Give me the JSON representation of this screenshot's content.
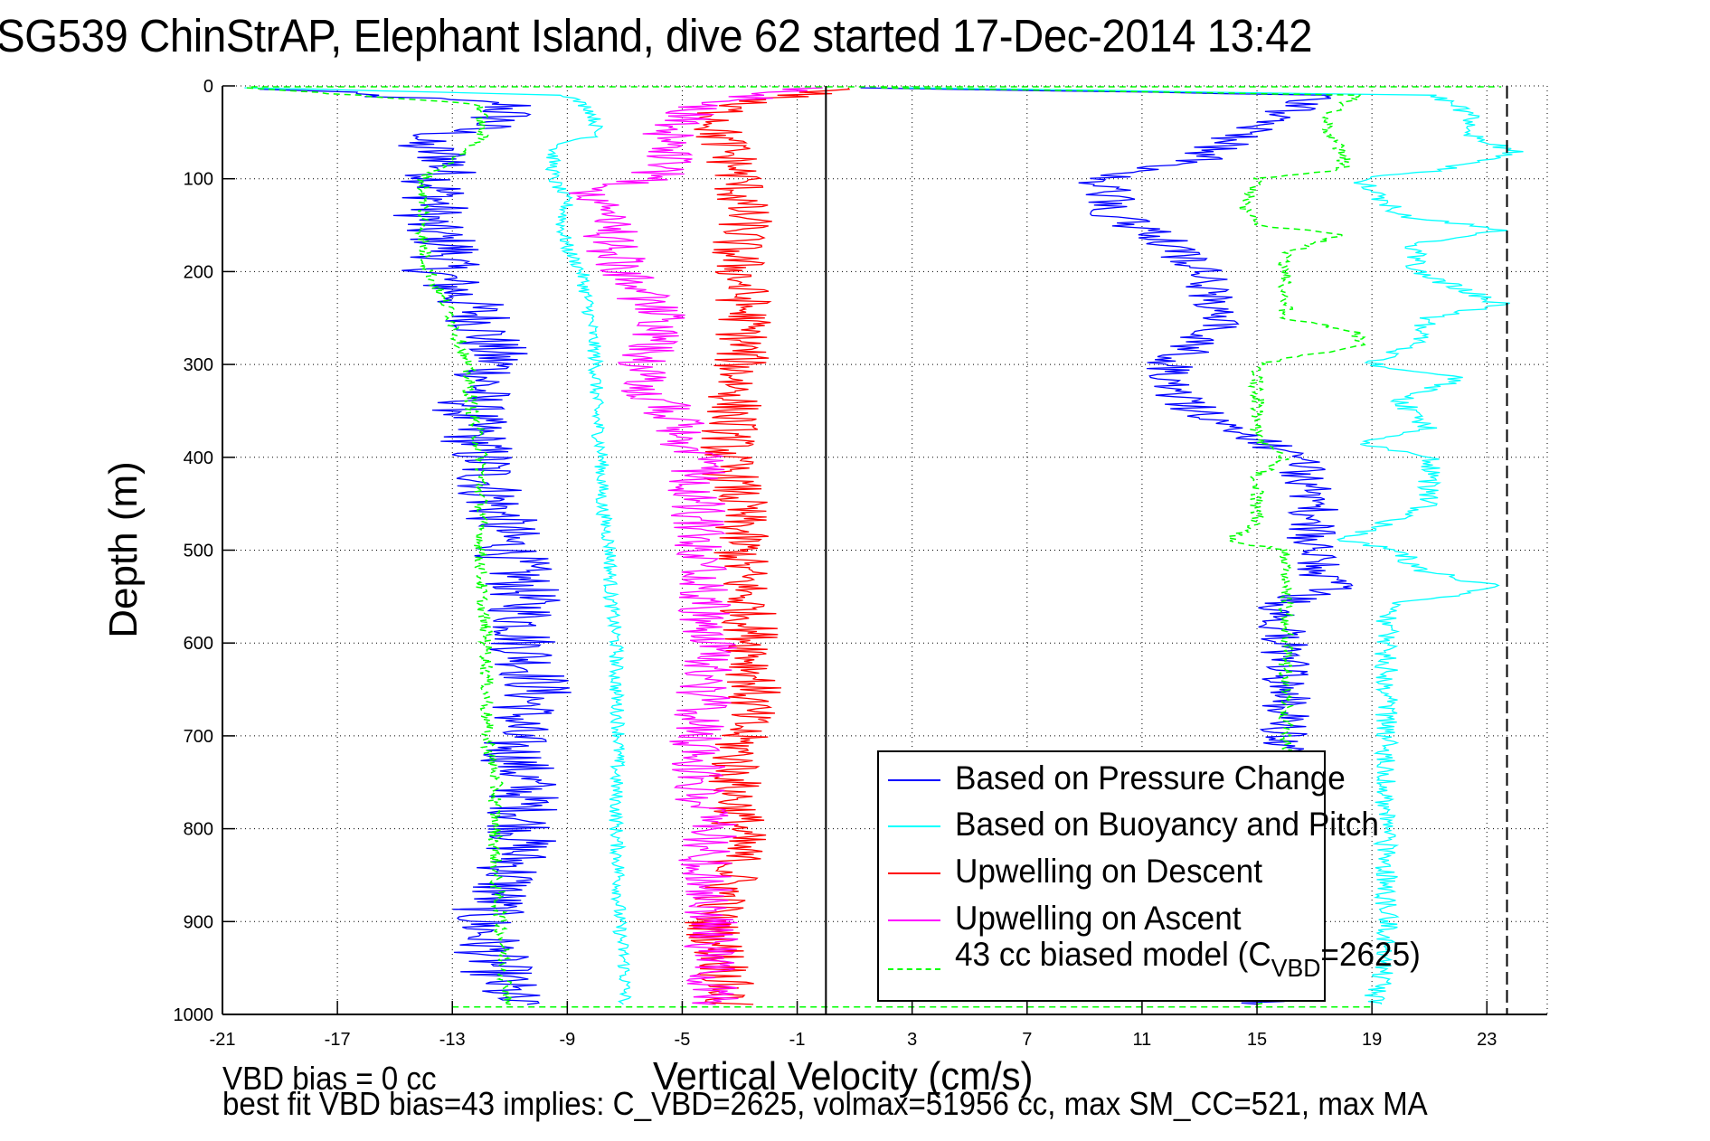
{
  "figure": {
    "title": "SG539 ChinStrAP, Elephant Island, dive 62 started 17-Dec-2014 13:42",
    "footer_line1": "VBD bias = 0 cc",
    "footer_line2": "best fit VBD bias=43 implies: C_VBD=2625, volmax=51956 cc, max SM_CC=521, max MA"
  },
  "chart_data": {
    "type": "line",
    "title": "SG539 ChinStrAP, Elephant Island, dive 62 started 17-Dec-2014 13:42",
    "xlabel": "Vertical Velocity (cm/s)",
    "ylabel": "Depth (m)",
    "xlim": [
      -21,
      25.1
    ],
    "ylim": [
      0,
      1000
    ],
    "y_reversed": true,
    "grid": true,
    "xticks": [
      -21,
      -17,
      -13,
      -9,
      -5,
      -1,
      3,
      7,
      11,
      15,
      19,
      23
    ],
    "yticks": [
      0,
      100,
      200,
      300,
      400,
      500,
      600,
      700,
      800,
      900,
      1000
    ],
    "xtick_labels": [
      "-21",
      "-17",
      "-13",
      "-9",
      "-5",
      "-1",
      "3",
      "7",
      "11",
      "15",
      "19",
      "23"
    ],
    "ytick_labels": [
      "0",
      "100",
      "200",
      "300",
      "400",
      "500",
      "600",
      "700",
      "800",
      "900",
      "1000"
    ],
    "reference_lines": [
      {
        "name": "zero-velocity",
        "x": 0,
        "style": "solid",
        "color": "#000000"
      },
      {
        "name": "max-velocity",
        "x": 23.7,
        "style": "dashed",
        "color": "#000000"
      }
    ],
    "legend": {
      "placement": "bottom-right",
      "entries": [
        {
          "label": "Based on Pressure Change",
          "color": "#0000ff",
          "style": "solid"
        },
        {
          "label": "Based on Buoyancy and Pitch",
          "color": "#00ffff",
          "style": "solid"
        },
        {
          "label": "Upwelling on Descent",
          "color": "#ff0000",
          "style": "solid"
        },
        {
          "label": "Upwelling on Ascent",
          "color": "#ff00ff",
          "style": "solid"
        },
        {
          "label_main": "43 cc biased model (C",
          "label_sub": "VBD",
          "label_tail": "=2625)",
          "color": "#00ff00",
          "style": "dashed"
        }
      ]
    },
    "series": [
      {
        "name": "Based on Pressure Change (descent)",
        "color": "#0000ff",
        "style": "solid",
        "noise_cm_s": 1.3,
        "depth": [
          2,
          20,
          40,
          60,
          80,
          100,
          125,
          150,
          175,
          200,
          250,
          300,
          350,
          400,
          450,
          500,
          550,
          600,
          650,
          700,
          750,
          800,
          850,
          900,
          950,
          990
        ],
        "velocity": [
          -20,
          -11,
          -11.5,
          -14.5,
          -13,
          -13.5,
          -13.5,
          -14,
          -13,
          -13.5,
          -12,
          -11.5,
          -12.5,
          -12,
          -11.5,
          -11,
          -10.5,
          -10.5,
          -10,
          -11,
          -10.5,
          -10.5,
          -11,
          -12,
          -11.5,
          -11
        ]
      },
      {
        "name": "Based on Pressure Change (ascent)",
        "color": "#0000ff",
        "style": "solid",
        "noise_cm_s": 0.9,
        "depth": [
          990,
          950,
          900,
          850,
          800,
          750,
          700,
          650,
          600,
          560,
          540,
          500,
          450,
          400,
          370,
          330,
          300,
          260,
          230,
          200,
          160,
          140,
          120,
          100,
          80,
          50,
          30,
          10,
          2
        ],
        "velocity": [
          15,
          16,
          16,
          16,
          16,
          16,
          16,
          16,
          16,
          15.8,
          17.5,
          16.8,
          17,
          16.5,
          14,
          12,
          12,
          13.5,
          13.5,
          13,
          11.5,
          10,
          10,
          9.5,
          13,
          14.5,
          16,
          17,
          2
        ]
      },
      {
        "name": "Based on Buoyancy and Pitch (descent)",
        "color": "#00ffff",
        "style": "solid",
        "noise_cm_s": 0.25,
        "depth": [
          2,
          10,
          25,
          40,
          55,
          60,
          70,
          80,
          100,
          125,
          150,
          175,
          200,
          250,
          300,
          350,
          400,
          450,
          500,
          550,
          600,
          650,
          700,
          750,
          800,
          850,
          900,
          950,
          990
        ],
        "velocity": [
          -20,
          -9,
          -8.2,
          -8,
          -8,
          -9,
          -9.5,
          -9.5,
          -9.5,
          -9,
          -9.2,
          -9,
          -8.5,
          -8.2,
          -8,
          -8,
          -7.8,
          -7.8,
          -7.5,
          -7.5,
          -7.3,
          -7.3,
          -7.2,
          -7.3,
          -7.3,
          -7.2,
          -7.2,
          -7,
          -7
        ]
      },
      {
        "name": "Based on Buoyancy and Pitch (ascent)",
        "color": "#00ffff",
        "style": "solid",
        "noise_cm_s": 0.4,
        "depth": [
          990,
          950,
          900,
          850,
          800,
          750,
          700,
          650,
          600,
          560,
          540,
          520,
          500,
          490,
          450,
          400,
          385,
          370,
          340,
          315,
          300,
          275,
          250,
          235,
          200,
          170,
          155,
          140,
          100,
          90,
          70,
          50,
          30,
          10,
          2
        ],
        "velocity": [
          19,
          19.5,
          19.5,
          19.5,
          19.5,
          19.5,
          19.5,
          19.5,
          19.5,
          19.5,
          23.5,
          20.5,
          20,
          18,
          21,
          21,
          18.5,
          21,
          20,
          22,
          19,
          20.5,
          21,
          23.5,
          20.5,
          20.5,
          23.5,
          20,
          18.5,
          21.5,
          24,
          22,
          22.5,
          21,
          3
        ]
      },
      {
        "name": "Upwelling on Descent",
        "color": "#ff0000",
        "style": "solid",
        "noise_cm_s": 1.0,
        "depth": [
          2,
          20,
          50,
          75,
          100,
          125,
          150,
          175,
          200,
          250,
          300,
          350,
          400,
          450,
          500,
          550,
          600,
          650,
          700,
          750,
          800,
          850,
          900,
          950,
          990
        ],
        "velocity": [
          1,
          -3.5,
          -3.8,
          -3.3,
          -3,
          -3,
          -2.8,
          -3.2,
          -3,
          -2.8,
          -3,
          -3.2,
          -3.5,
          -3,
          -3,
          -2.8,
          -2.5,
          -2.5,
          -3,
          -3.2,
          -3,
          -3.2,
          -4,
          -3.5,
          -3.5
        ]
      },
      {
        "name": "Upwelling on Ascent",
        "color": "#ff00ff",
        "style": "solid",
        "noise_cm_s": 1.0,
        "depth": [
          990,
          950,
          900,
          850,
          800,
          750,
          700,
          650,
          600,
          550,
          500,
          450,
          400,
          375,
          350,
          320,
          300,
          275,
          250,
          225,
          200,
          175,
          150,
          130,
          110,
          100,
          75,
          50,
          25,
          2
        ],
        "velocity": [
          -4,
          -4,
          -4,
          -4.2,
          -4,
          -4.5,
          -4.5,
          -4.2,
          -4,
          -4.3,
          -4.5,
          -4.5,
          -4.5,
          -5,
          -5.5,
          -6.5,
          -6.5,
          -6,
          -5.5,
          -6.5,
          -7,
          -7.5,
          -7.5,
          -8,
          -8,
          -6,
          -5.5,
          -5.5,
          -4.5,
          -1
        ]
      },
      {
        "name": "43 cc biased model (descent)",
        "color": "#00ff00",
        "style": "dashed",
        "noise_cm_s": 0.25,
        "depth": [
          2,
          20,
          40,
          60,
          80,
          100,
          125,
          150,
          175,
          200,
          250,
          300,
          350,
          400,
          450,
          500,
          550,
          600,
          650,
          700,
          750,
          800,
          850,
          900,
          950,
          990
        ],
        "velocity": [
          -20,
          -12,
          -12,
          -12,
          -13,
          -14,
          -14,
          -14,
          -14,
          -13.8,
          -13,
          -12.5,
          -12.3,
          -12,
          -12,
          -12,
          -12,
          -11.8,
          -11.8,
          -11.8,
          -11.5,
          -11.5,
          -11.5,
          -11.3,
          -11.2,
          -11
        ]
      },
      {
        "name": "43 cc biased model (ascent)",
        "color": "#00ff00",
        "style": "dashed",
        "noise_cm_s": 0.25,
        "depth": [
          990,
          950,
          900,
          850,
          800,
          750,
          700,
          650,
          600,
          550,
          500,
          490,
          470,
          420,
          400,
          380,
          360,
          340,
          320,
          300,
          280,
          265,
          250,
          225,
          200,
          180,
          160,
          150,
          130,
          100,
          90,
          75,
          50,
          30,
          10,
          2
        ],
        "velocity": [
          15,
          16,
          16,
          16,
          16,
          16,
          16,
          16,
          16,
          16,
          16,
          14,
          15,
          15,
          16,
          15,
          15,
          15,
          15,
          15,
          18.5,
          18.5,
          16,
          16,
          16,
          16,
          18,
          15,
          14.5,
          15,
          18,
          18,
          17.5,
          17.5,
          18.5,
          2
        ]
      }
    ]
  }
}
